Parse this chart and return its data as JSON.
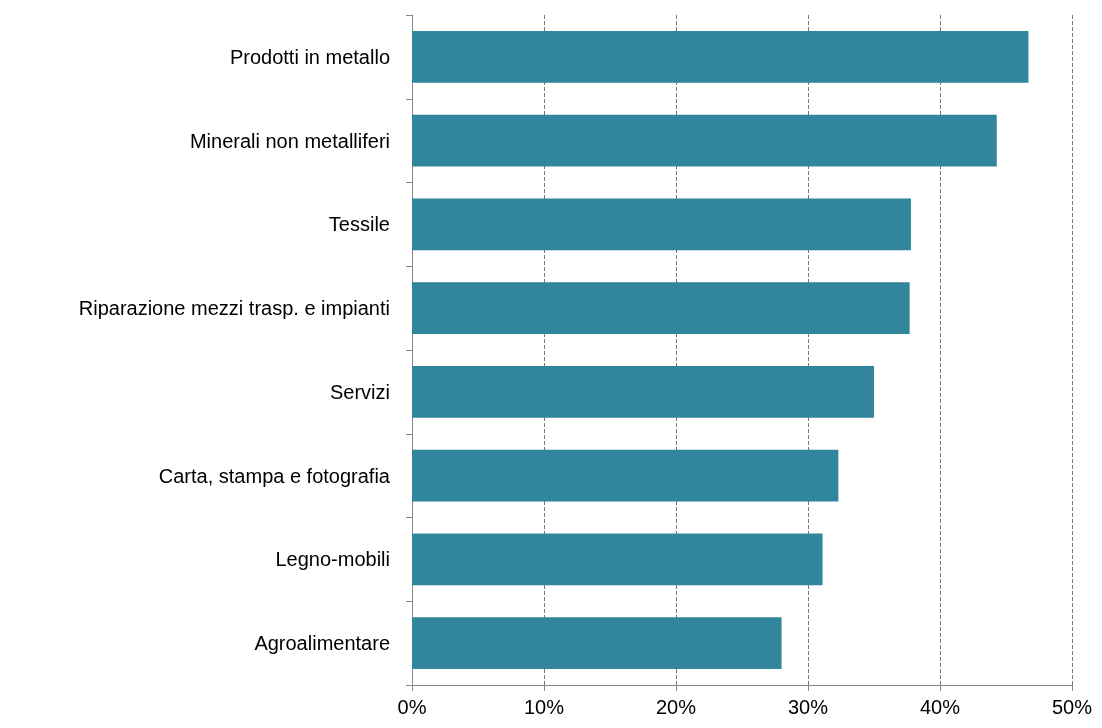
{
  "chart_data": {
    "type": "bar",
    "orientation": "horizontal",
    "categories": [
      "Prodotti in metallo",
      "Minerali non metalliferi",
      "Tessile",
      "Riparazione mezzi trasp. e impianti",
      "Servizi",
      "Carta, stampa e fotografia",
      "Legno-mobili",
      "Agroalimentare"
    ],
    "values": [
      46.7,
      44.3,
      37.8,
      37.7,
      35.0,
      32.3,
      31.1,
      28.0
    ],
    "color": "#31859c",
    "xlim": [
      0,
      50
    ],
    "xticks": [
      {
        "value": 0,
        "label": "0%"
      },
      {
        "value": 10,
        "label": "10%"
      },
      {
        "value": 20,
        "label": "20%"
      },
      {
        "value": 30,
        "label": "30%"
      },
      {
        "value": 40,
        "label": "40%"
      },
      {
        "value": 50,
        "label": "50%"
      }
    ],
    "grid": "x"
  }
}
